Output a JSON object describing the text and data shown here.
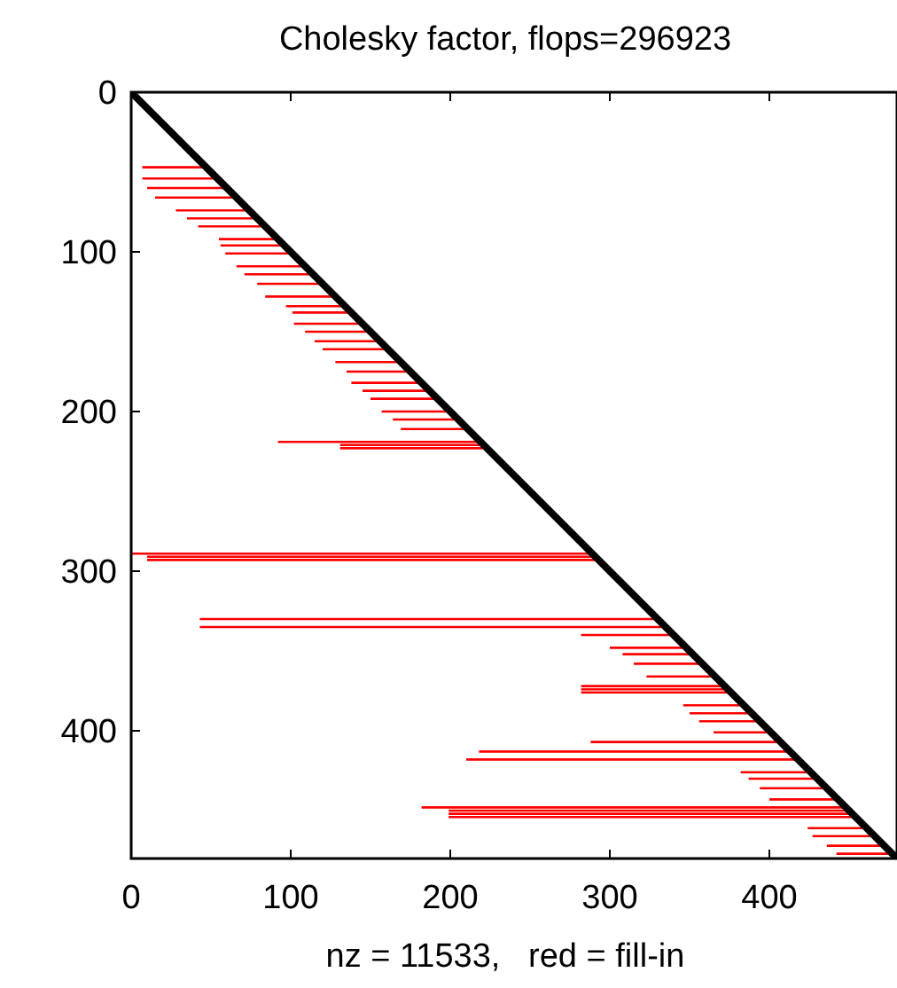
{
  "chart_data": {
    "type": "line",
    "title": "Cholesky factor, flops=296923",
    "xlabel": "nz = 11533,   red = fill-in",
    "xlim": [
      0,
      480
    ],
    "ylim": [
      480,
      0
    ],
    "xticks": [
      0,
      100,
      200,
      300,
      400
    ],
    "yticks": [
      0,
      100,
      200,
      300,
      400
    ],
    "grid": false,
    "marker": "none",
    "line_style": "solid",
    "series": [
      {
        "color": "#ff0000",
        "x": [
          7,
          47,
          null,
          7,
          54,
          null,
          10,
          60,
          null,
          15,
          66,
          null,
          28,
          74,
          null,
          35,
          79,
          null,
          42,
          84,
          null,
          55,
          92,
          null,
          56,
          96,
          null,
          59,
          101,
          null,
          66,
          109,
          null,
          71,
          114,
          null,
          79,
          120,
          null,
          84,
          128,
          null,
          97,
          134,
          null,
          101,
          138,
          null,
          102,
          145,
          null,
          109,
          150,
          null,
          115,
          156,
          null,
          120,
          161,
          null,
          128,
          169,
          null,
          135,
          175,
          null,
          138,
          182,
          null,
          145,
          187,
          null,
          150,
          192,
          null,
          157,
          200,
          null,
          164,
          205,
          null,
          169,
          211,
          null,
          92,
          219,
          null,
          131,
          221,
          null,
          131,
          223,
          null,
          0,
          289,
          null,
          10,
          291,
          null,
          10,
          293,
          null,
          43,
          330,
          null,
          43,
          335,
          null,
          282,
          340,
          null,
          300,
          348,
          null,
          308,
          352,
          null,
          315,
          358,
          null,
          323,
          366,
          null,
          282,
          372,
          null,
          282,
          374,
          null,
          282,
          376,
          null,
          346,
          384,
          null,
          350,
          389,
          null,
          356,
          394,
          null,
          365,
          401,
          null,
          288,
          407,
          null,
          218,
          413,
          null,
          210,
          418,
          null,
          382,
          426,
          null,
          387,
          430,
          null,
          394,
          436,
          null,
          400,
          443,
          null,
          182,
          448,
          null,
          199,
          450,
          null,
          199,
          452,
          null,
          199,
          454,
          null,
          424,
          461,
          null,
          427,
          466,
          null,
          436,
          472,
          null,
          442,
          477
        ],
        "values": [
          47,
          47,
          null,
          54,
          54,
          null,
          60,
          60,
          null,
          66,
          66,
          null,
          74,
          74,
          null,
          79,
          79,
          null,
          84,
          84,
          null,
          92,
          92,
          null,
          96,
          96,
          null,
          101,
          101,
          null,
          109,
          109,
          null,
          114,
          114,
          null,
          120,
          120,
          null,
          128,
          128,
          null,
          134,
          134,
          null,
          138,
          138,
          null,
          145,
          145,
          null,
          150,
          150,
          null,
          156,
          156,
          null,
          161,
          161,
          null,
          169,
          169,
          null,
          175,
          175,
          null,
          182,
          182,
          null,
          187,
          187,
          null,
          192,
          192,
          null,
          200,
          200,
          null,
          205,
          205,
          null,
          211,
          211,
          null,
          219,
          219,
          null,
          221,
          221,
          null,
          223,
          223,
          null,
          289,
          289,
          null,
          291,
          291,
          null,
          293,
          293,
          null,
          330,
          330,
          null,
          335,
          335,
          null,
          340,
          340,
          null,
          348,
          348,
          null,
          352,
          352,
          null,
          358,
          358,
          null,
          366,
          366,
          null,
          372,
          372,
          null,
          374,
          374,
          null,
          376,
          376,
          null,
          384,
          384,
          null,
          389,
          389,
          null,
          394,
          394,
          null,
          401,
          401,
          null,
          407,
          407,
          null,
          413,
          413,
          null,
          418,
          418,
          null,
          426,
          426,
          null,
          430,
          430,
          null,
          436,
          436,
          null,
          443,
          443,
          null,
          448,
          448,
          null,
          450,
          450,
          null,
          452,
          452,
          null,
          454,
          454,
          null,
          461,
          461,
          null,
          466,
          466,
          null,
          472,
          472,
          null,
          477,
          477
        ]
      },
      {
        "color": "#000000",
        "x": [
          0,
          480
        ],
        "values": [
          0,
          480
        ]
      }
    ]
  }
}
